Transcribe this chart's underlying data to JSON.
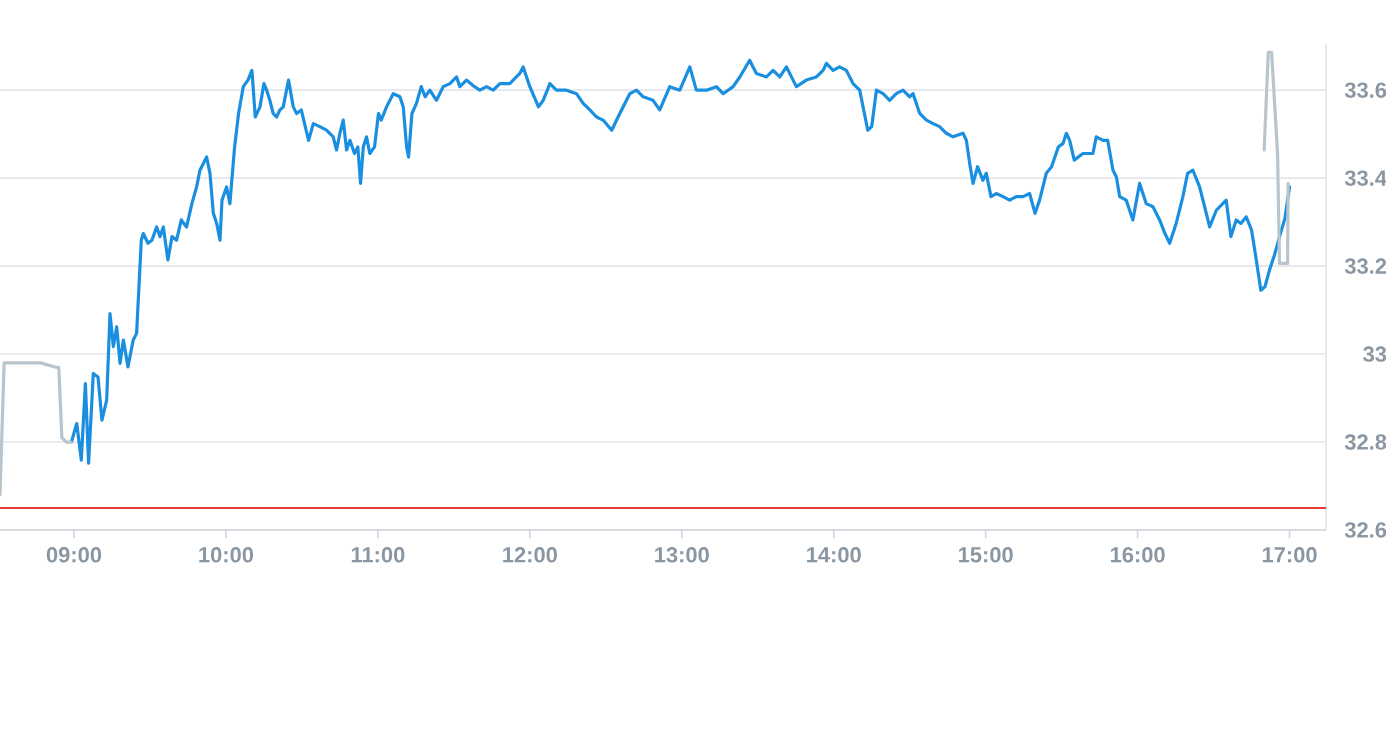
{
  "chart_data": {
    "type": "line",
    "xlim": [
      8.513,
      17.24
    ],
    "ylim": [
      32.6,
      33.705
    ],
    "xticks": [
      {
        "value": 9,
        "label": "09:00"
      },
      {
        "value": 10,
        "label": "10:00"
      },
      {
        "value": 11,
        "label": "11:00"
      },
      {
        "value": 12,
        "label": "12:00"
      },
      {
        "value": 13,
        "label": "13:00"
      },
      {
        "value": 14,
        "label": "14:00"
      },
      {
        "value": 15,
        "label": "15:00"
      },
      {
        "value": 16,
        "label": "16:00"
      },
      {
        "value": 17,
        "label": "17:00"
      }
    ],
    "yticks": [
      32.6,
      32.8,
      33,
      33.2,
      33.4,
      33.6
    ],
    "grid": "y",
    "ref_lines": [
      {
        "axis": "y",
        "value": 32.65,
        "color": "#e53935"
      }
    ],
    "series": [
      {
        "color": "#b8c5cd",
        "x": [
          8.513,
          8.54,
          8.78,
          8.88,
          8.9,
          8.92,
          8.95,
          8.99
        ],
        "values": [
          32.68,
          32.98,
          32.98,
          32.97,
          32.97,
          32.81,
          32.8,
          32.8
        ]
      },
      {
        "color": "#1a8fdf",
        "x": [
          8.987,
          9.018,
          9.048,
          9.075,
          9.096,
          9.127,
          9.158,
          9.184,
          9.215,
          9.237,
          9.259,
          9.281,
          9.303,
          9.325,
          9.355,
          9.39,
          9.412,
          9.443,
          9.456,
          9.487,
          9.513,
          9.544,
          9.566,
          9.588,
          9.618,
          9.645,
          9.675,
          9.706,
          9.741,
          9.776,
          9.807,
          9.829,
          9.873,
          9.895,
          9.917,
          9.939,
          9.961,
          9.974,
          10.004,
          10.026,
          10.057,
          10.083,
          10.114,
          10.145,
          10.171,
          10.193,
          10.224,
          10.25,
          10.268,
          10.289,
          10.311,
          10.333,
          10.355,
          10.377,
          10.412,
          10.443,
          10.465,
          10.496,
          10.522,
          10.544,
          10.575,
          10.618,
          10.662,
          10.706,
          10.728,
          10.75,
          10.772,
          10.794,
          10.816,
          10.846,
          10.868,
          10.886,
          10.904,
          10.925,
          10.947,
          10.978,
          11.004,
          11.022,
          11.057,
          11.101,
          11.145,
          11.167,
          11.189,
          11.202,
          11.224,
          11.254,
          11.285,
          11.311,
          11.342,
          11.386,
          11.43,
          11.474,
          11.518,
          11.539,
          11.583,
          11.636,
          11.671,
          11.715,
          11.759,
          11.803,
          11.868,
          11.934,
          11.956,
          12.0,
          12.057,
          12.088,
          12.132,
          12.175,
          12.241,
          12.307,
          12.351,
          12.395,
          12.439,
          12.482,
          12.539,
          12.592,
          12.658,
          12.702,
          12.746,
          12.811,
          12.855,
          12.921,
          12.987,
          13.053,
          13.096,
          13.162,
          13.228,
          13.272,
          13.338,
          13.382,
          13.447,
          13.491,
          13.557,
          13.601,
          13.645,
          13.689,
          13.754,
          13.82,
          13.886,
          13.93,
          13.952,
          13.996,
          14.039,
          14.083,
          14.127,
          14.171,
          14.202,
          14.224,
          14.25,
          14.281,
          14.325,
          14.368,
          14.412,
          14.456,
          14.5,
          14.522,
          14.566,
          14.61,
          14.654,
          14.697,
          14.741,
          14.785,
          14.851,
          14.873,
          14.895,
          14.917,
          14.947,
          14.982,
          15.004,
          15.035,
          15.07,
          15.114,
          15.158,
          15.202,
          15.246,
          15.289,
          15.325,
          15.355,
          15.399,
          15.434,
          15.478,
          15.509,
          15.531,
          15.553,
          15.583,
          15.64,
          15.706,
          15.728,
          15.772,
          15.803,
          15.838,
          15.86,
          15.882,
          15.925,
          15.969,
          16.013,
          16.057,
          16.101,
          16.145,
          16.18,
          16.211,
          16.254,
          16.298,
          16.329,
          16.364,
          16.408,
          16.452,
          16.474,
          16.518,
          16.583,
          16.614,
          16.649,
          16.68,
          16.715,
          16.75,
          16.781,
          16.811,
          16.838,
          16.868,
          16.904,
          16.934,
          16.969,
          17.0
        ],
        "values": [
          32.805,
          32.842,
          32.759,
          32.933,
          32.752,
          32.956,
          32.948,
          32.85,
          32.895,
          33.092,
          33.017,
          33.062,
          32.979,
          33.032,
          32.971,
          33.032,
          33.047,
          33.259,
          33.274,
          33.252,
          33.259,
          33.289,
          33.267,
          33.289,
          33.214,
          33.267,
          33.259,
          33.305,
          33.289,
          33.342,
          33.38,
          33.418,
          33.448,
          33.411,
          33.32,
          33.297,
          33.259,
          33.35,
          33.38,
          33.342,
          33.471,
          33.547,
          33.608,
          33.623,
          33.645,
          33.539,
          33.562,
          33.615,
          33.6,
          33.577,
          33.547,
          33.539,
          33.555,
          33.562,
          33.623,
          33.562,
          33.547,
          33.555,
          33.517,
          33.486,
          33.524,
          33.517,
          33.509,
          33.494,
          33.464,
          33.502,
          33.532,
          33.464,
          33.486,
          33.456,
          33.471,
          33.388,
          33.471,
          33.494,
          33.456,
          33.471,
          33.547,
          33.532,
          33.562,
          33.592,
          33.585,
          33.562,
          33.471,
          33.448,
          33.547,
          33.57,
          33.608,
          33.585,
          33.6,
          33.577,
          33.608,
          33.615,
          33.63,
          33.608,
          33.623,
          33.608,
          33.6,
          33.608,
          33.6,
          33.615,
          33.615,
          33.638,
          33.653,
          33.608,
          33.562,
          33.577,
          33.615,
          33.6,
          33.6,
          33.592,
          33.57,
          33.555,
          33.539,
          33.532,
          33.509,
          33.547,
          33.592,
          33.6,
          33.585,
          33.577,
          33.555,
          33.608,
          33.6,
          33.653,
          33.6,
          33.6,
          33.608,
          33.592,
          33.608,
          33.63,
          33.668,
          33.638,
          33.63,
          33.645,
          33.63,
          33.653,
          33.608,
          33.623,
          33.63,
          33.645,
          33.661,
          33.645,
          33.653,
          33.645,
          33.615,
          33.6,
          33.547,
          33.509,
          33.517,
          33.6,
          33.592,
          33.577,
          33.592,
          33.6,
          33.585,
          33.592,
          33.547,
          33.532,
          33.524,
          33.517,
          33.502,
          33.494,
          33.502,
          33.486,
          33.433,
          33.388,
          33.426,
          33.395,
          33.411,
          33.358,
          33.365,
          33.358,
          33.35,
          33.358,
          33.358,
          33.365,
          33.32,
          33.35,
          33.411,
          33.426,
          33.471,
          33.479,
          33.502,
          33.486,
          33.441,
          33.456,
          33.456,
          33.494,
          33.486,
          33.486,
          33.418,
          33.403,
          33.358,
          33.35,
          33.305,
          33.388,
          33.342,
          33.335,
          33.305,
          33.274,
          33.252,
          33.297,
          33.358,
          33.411,
          33.418,
          33.38,
          33.32,
          33.289,
          33.327,
          33.35,
          33.267,
          33.305,
          33.297,
          33.312,
          33.282,
          33.214,
          33.145,
          33.153,
          33.191,
          33.229,
          33.267,
          33.308,
          33.38
        ]
      },
      {
        "color": "#b8c5cd",
        "x": [
          16.833,
          16.86,
          16.882,
          16.921,
          16.934,
          16.987,
          16.991
        ],
        "values": [
          33.464,
          33.686,
          33.686,
          33.456,
          33.206,
          33.206,
          33.388
        ]
      }
    ]
  }
}
